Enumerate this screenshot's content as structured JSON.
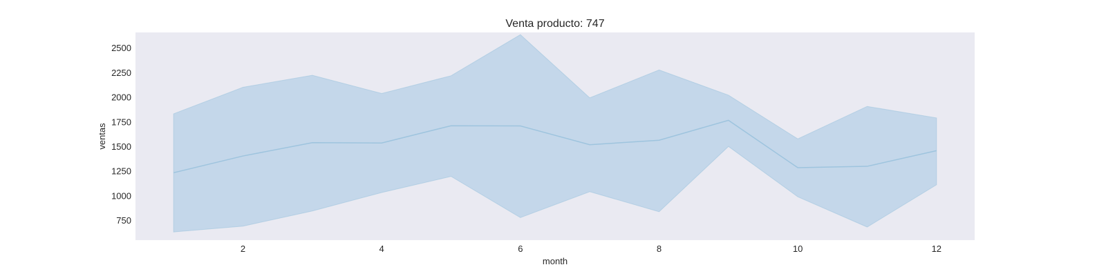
{
  "chart_data": {
    "type": "area",
    "title": "Venta producto: 747",
    "xlabel": "month",
    "ylabel": "ventas",
    "xlim": [
      0.45,
      12.55
    ],
    "ylim": [
      551,
      2659
    ],
    "xticks": [
      2,
      4,
      6,
      8,
      10,
      12
    ],
    "yticks": [
      750,
      1000,
      1250,
      1500,
      1750,
      2000,
      2250,
      2500
    ],
    "grid": false,
    "x": [
      1,
      2,
      3,
      4,
      5,
      6,
      7,
      8,
      9,
      10,
      11,
      12
    ],
    "series": [
      {
        "values": [
          1235,
          1405,
          1540,
          1537,
          1712,
          1710,
          1519,
          1565,
          1767,
          1286,
          1300,
          1459
        ],
        "upper": [
          1833,
          2102,
          2224,
          2039,
          2219,
          2636,
          1995,
          2278,
          2022,
          1578,
          1908,
          1791
        ],
        "lower": [
          634,
          693,
          847,
          1034,
          1198,
          780,
          1043,
          839,
          1502,
          991,
          684,
          1113
        ]
      }
    ],
    "colors": {
      "line": "#9ec4de",
      "band_fill": "#aac9e4",
      "plot_background": "#eaeaf2"
    }
  }
}
